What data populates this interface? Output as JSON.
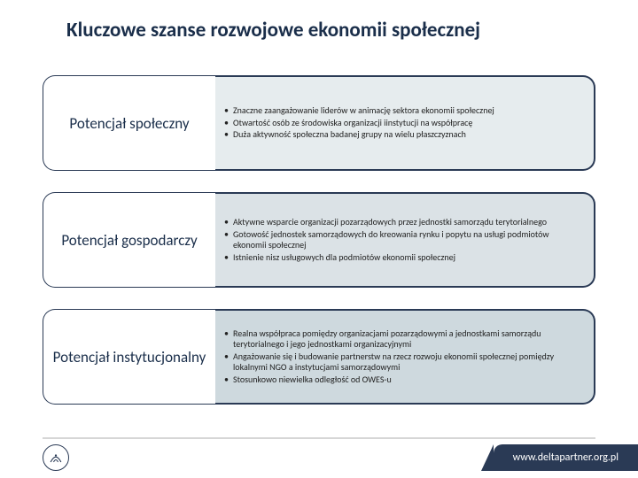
{
  "title": {
    "text": "Kluczowe szanse rozwojowe ekonomii społecznej",
    "fontsize": 23
  },
  "colors": {
    "title_text": "#1a2e4a",
    "label_text": "#1a2e4a",
    "body_text": "#222222",
    "box_border": "#2a3a55",
    "footer_line": "#d6d6d6",
    "url_bg": "#2a3a55",
    "url_text": "#ffffff",
    "background": "#ffffff"
  },
  "fonts": {
    "label_fontsize": 17,
    "bullet_fontsize": 10,
    "url_fontsize": 12
  },
  "rows": [
    {
      "label": "Potencjał społeczny",
      "content_bg": "#e6ecee",
      "bullets": [
        "Znaczne zaangażowanie liderów w animację sektora ekonomii społecznej",
        "Otwartość osób ze środowiska organizacji iinstytucji na współpracę",
        "Duża aktywność społeczna badanej grupy na wielu płaszczyznach"
      ]
    },
    {
      "label": "Potencjał gospodarczy",
      "content_bg": "#dbe2e6",
      "bullets": [
        "Aktywne wsparcie organizacji pozarządowych przez jednostki samorządu terytorialnego",
        "Gotowość jednostek samorządowych do kreowania rynku i popytu na usługi podmiotów ekonomii społecznej",
        "Istnienie nisz usługowych dla podmiotów ekonomii społecznej"
      ]
    },
    {
      "label": "Potencjał instytucjonalny",
      "content_bg": "#ced9de",
      "bullets": [
        "Realna współpraca pomiędzy organizacjami pozarządowymi a jednostkami samorządu terytorialnego i jego jednostkami organizacyjnymi",
        "Angażowanie się i budowanie partnerstw na rzecz rozwoju ekonomii społecznej pomiędzy lokalnymi NGO a instytucjami samorządowymi",
        "Stosunkowo niewielka odległość od OWES-u"
      ]
    }
  ],
  "footer": {
    "url": "www.deltapartner.org.pl",
    "logo_name": "deltapartner-logo"
  }
}
